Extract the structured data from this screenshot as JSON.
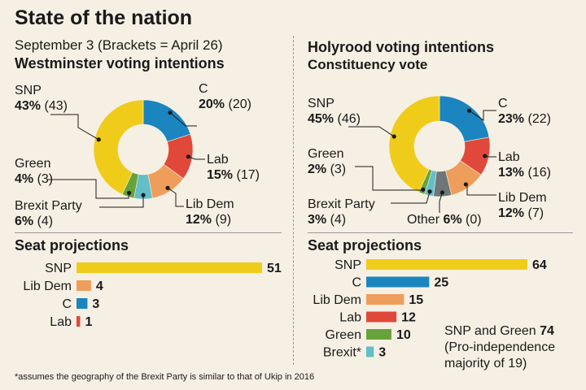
{
  "title": "State of the nation",
  "left": {
    "date_note": "September 3 (Brackets = April 26)",
    "heading": "Westminster voting intentions",
    "seats_heading": "Seat projections"
  },
  "right": {
    "heading": "Holyrood voting intentions",
    "subheading": "Constituency vote",
    "seats_heading": "Seat projections",
    "note_line1_prefix": "SNP and Green",
    "note_line1_value": "74",
    "note_line2": "(Pro-independence",
    "note_line3": "majority of 19)"
  },
  "footnote": "*assumes the geography of the Brexit Party is similar to that of Ukip in 2016",
  "colors": {
    "SNP": "#f0cc1a",
    "C": "#1a85bf",
    "Lab": "#e0483a",
    "Lib Dem": "#ee9e5a",
    "Green": "#67a33a",
    "Brexit Party": "#62bfc8",
    "Other": "#6e7678"
  },
  "chart_data": [
    {
      "type": "pie",
      "title": "Westminster voting intentions",
      "categories": [
        "C",
        "Lab",
        "Lib Dem",
        "Brexit Party",
        "Green",
        "SNP"
      ],
      "values": [
        20,
        15,
        12,
        6,
        4,
        43
      ],
      "previous": [
        20,
        17,
        9,
        4,
        3,
        43
      ],
      "labels": [
        {
          "name": "C",
          "value": "20%",
          "prev": "(20)"
        },
        {
          "name": "Lab",
          "value": "15%",
          "prev": "(17)"
        },
        {
          "name": "Lib Dem",
          "value": "12%",
          "prev": "(9)"
        },
        {
          "name": "Brexit Party",
          "value": "6%",
          "prev": "(4)"
        },
        {
          "name": "Green",
          "value": "4%",
          "prev": "(3)"
        },
        {
          "name": "SNP",
          "value": "43%",
          "prev": "(43)"
        }
      ]
    },
    {
      "type": "pie",
      "title": "Holyrood voting intentions",
      "categories": [
        "C",
        "Lab",
        "Lib Dem",
        "Other",
        "Brexit Party",
        "Green",
        "SNP"
      ],
      "values": [
        23,
        13,
        12,
        6,
        3,
        2,
        45
      ],
      "previous": [
        22,
        16,
        7,
        0,
        4,
        3,
        46
      ],
      "labels": [
        {
          "name": "C",
          "value": "23%",
          "prev": "(22)"
        },
        {
          "name": "Lab",
          "value": "13%",
          "prev": "(16)"
        },
        {
          "name": "Lib Dem",
          "value": "12%",
          "prev": "(7)"
        },
        {
          "name": "Other",
          "value": "6%",
          "prev": "(0)"
        },
        {
          "name": "Brexit Party",
          "value": "3%",
          "prev": "(4)"
        },
        {
          "name": "Green",
          "value": "2%",
          "prev": "(3)"
        },
        {
          "name": "SNP",
          "value": "45%",
          "prev": "(46)"
        }
      ]
    },
    {
      "type": "bar",
      "title": "Seat projections",
      "categories": [
        "SNP",
        "Lib Dem",
        "C",
        "Lab"
      ],
      "values": [
        51,
        4,
        3,
        1
      ],
      "colorkeys": [
        "SNP",
        "Lib Dem",
        "C",
        "Lab"
      ]
    },
    {
      "type": "bar",
      "title": "Seat projections",
      "categories": [
        "SNP",
        "C",
        "Lib Dem",
        "Lab",
        "Green",
        "Brexit*"
      ],
      "values": [
        64,
        25,
        15,
        12,
        10,
        3
      ],
      "colorkeys": [
        "SNP",
        "C",
        "Lib Dem",
        "Lab",
        "Green",
        "Brexit Party"
      ]
    }
  ]
}
